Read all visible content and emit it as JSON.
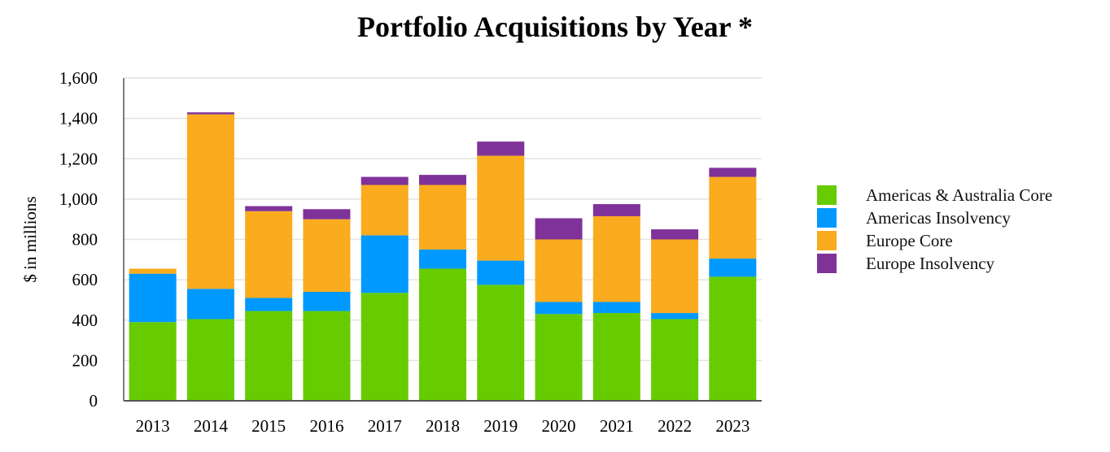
{
  "chart_data": {
    "type": "bar",
    "stacked": true,
    "title": "Portfolio Acquisitions by Year *",
    "xlabel": "",
    "ylabel": "$ in millions",
    "ylim": [
      0,
      1600
    ],
    "yticks": [
      0,
      200,
      400,
      600,
      800,
      1000,
      1200,
      1400,
      1600
    ],
    "ytick_labels": [
      "0",
      "200",
      "400",
      "600",
      "800",
      "1,000",
      "1,200",
      "1,400",
      "1,600"
    ],
    "grid": true,
    "legend_position": "right",
    "categories": [
      "2013",
      "2014",
      "2015",
      "2016",
      "2017",
      "2018",
      "2019",
      "2020",
      "2021",
      "2022",
      "2023"
    ],
    "series": [
      {
        "name": "Americas & Australia Core",
        "color": "#66cc00",
        "values": [
          390,
          405,
          445,
          445,
          535,
          655,
          575,
          430,
          435,
          405,
          615
        ]
      },
      {
        "name": "Americas Insolvency",
        "color": "#0099ff",
        "values": [
          240,
          150,
          65,
          95,
          285,
          95,
          120,
          60,
          55,
          30,
          90
        ]
      },
      {
        "name": "Europe Core",
        "color": "#faab1e",
        "values": [
          25,
          865,
          430,
          360,
          250,
          320,
          520,
          310,
          425,
          365,
          405
        ]
      },
      {
        "name": "Europe Insolvency",
        "color": "#7f3399",
        "values": [
          0,
          10,
          25,
          50,
          40,
          50,
          70,
          105,
          60,
          50,
          45
        ]
      }
    ]
  }
}
